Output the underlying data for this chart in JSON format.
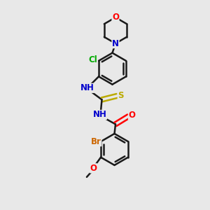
{
  "bg_color": "#e8e8e8",
  "bond_color": "#1a1a1a",
  "bond_width": 1.8,
  "atom_colors": {
    "O": "#ff0000",
    "N": "#0000cc",
    "S": "#bbaa00",
    "Cl": "#00aa00",
    "Br": "#cc6600",
    "C": "#1a1a1a",
    "H": "#555555"
  },
  "font_size": 8.5,
  "fig_size": [
    3.0,
    3.0
  ],
  "dpi": 100,
  "xlim": [
    0,
    10
  ],
  "ylim": [
    0,
    10
  ]
}
